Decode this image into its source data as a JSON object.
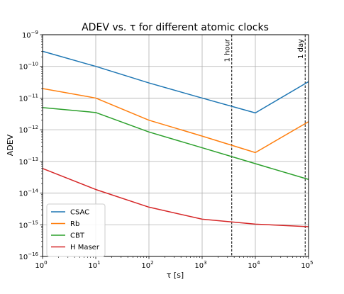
{
  "chart_data": {
    "type": "line",
    "title": "ADEV vs. τ for different atomic clocks",
    "xlabel": "τ [s]",
    "ylabel": "ADEV",
    "xscale": "log",
    "yscale": "log",
    "xlim": [
      1,
      100000
    ],
    "ylim": [
      1e-16,
      1e-09
    ],
    "grid": true,
    "legend_position": "lower-left",
    "x_ticks": [
      {
        "value": 1,
        "base": "10",
        "exp": "0"
      },
      {
        "value": 10,
        "base": "10",
        "exp": "1"
      },
      {
        "value": 100,
        "base": "10",
        "exp": "2"
      },
      {
        "value": 1000,
        "base": "10",
        "exp": "3"
      },
      {
        "value": 10000,
        "base": "10",
        "exp": "4"
      },
      {
        "value": 100000,
        "base": "10",
        "exp": "5"
      }
    ],
    "y_ticks": [
      {
        "value": 1e-16,
        "base": "10",
        "exp": "−16"
      },
      {
        "value": 1e-15,
        "base": "10",
        "exp": "−15"
      },
      {
        "value": 1e-14,
        "base": "10",
        "exp": "−14"
      },
      {
        "value": 1e-13,
        "base": "10",
        "exp": "−13"
      },
      {
        "value": 1e-12,
        "base": "10",
        "exp": "−12"
      },
      {
        "value": 1e-11,
        "base": "10",
        "exp": "−11"
      },
      {
        "value": 1e-10,
        "base": "10",
        "exp": "−10"
      },
      {
        "value": 1e-09,
        "base": "10",
        "exp": "−9"
      }
    ],
    "series": [
      {
        "name": "CSAC",
        "color": "#1f77b4",
        "x": [
          1,
          10,
          100,
          1000,
          10000,
          100000
        ],
        "y": [
          3e-10,
          1e-10,
          3e-11,
          1e-11,
          3.4e-12,
          3.3e-11
        ]
      },
      {
        "name": "Rb",
        "color": "#ff7f0e",
        "x": [
          1,
          10,
          100,
          1000,
          10000,
          100000
        ],
        "y": [
          2e-11,
          1e-11,
          2e-12,
          6.3e-13,
          1.9e-13,
          1.8e-12
        ]
      },
      {
        "name": "CBT",
        "color": "#2ca02c",
        "x": [
          1,
          10,
          100,
          1000,
          10000,
          100000
        ],
        "y": [
          5e-12,
          3.5e-12,
          8.5e-13,
          2.7e-13,
          8.5e-14,
          2.7e-14
        ]
      },
      {
        "name": "H Maser",
        "color": "#d62728",
        "x": [
          1,
          10,
          100,
          1000,
          10000,
          100000
        ],
        "y": [
          6e-14,
          1.3e-14,
          3.6e-15,
          1.5e-15,
          1.05e-15,
          8.7e-16
        ]
      }
    ],
    "annotations": [
      {
        "label": "1 hour",
        "x": 3600
      },
      {
        "label": "1 day",
        "x": 86400
      }
    ]
  }
}
